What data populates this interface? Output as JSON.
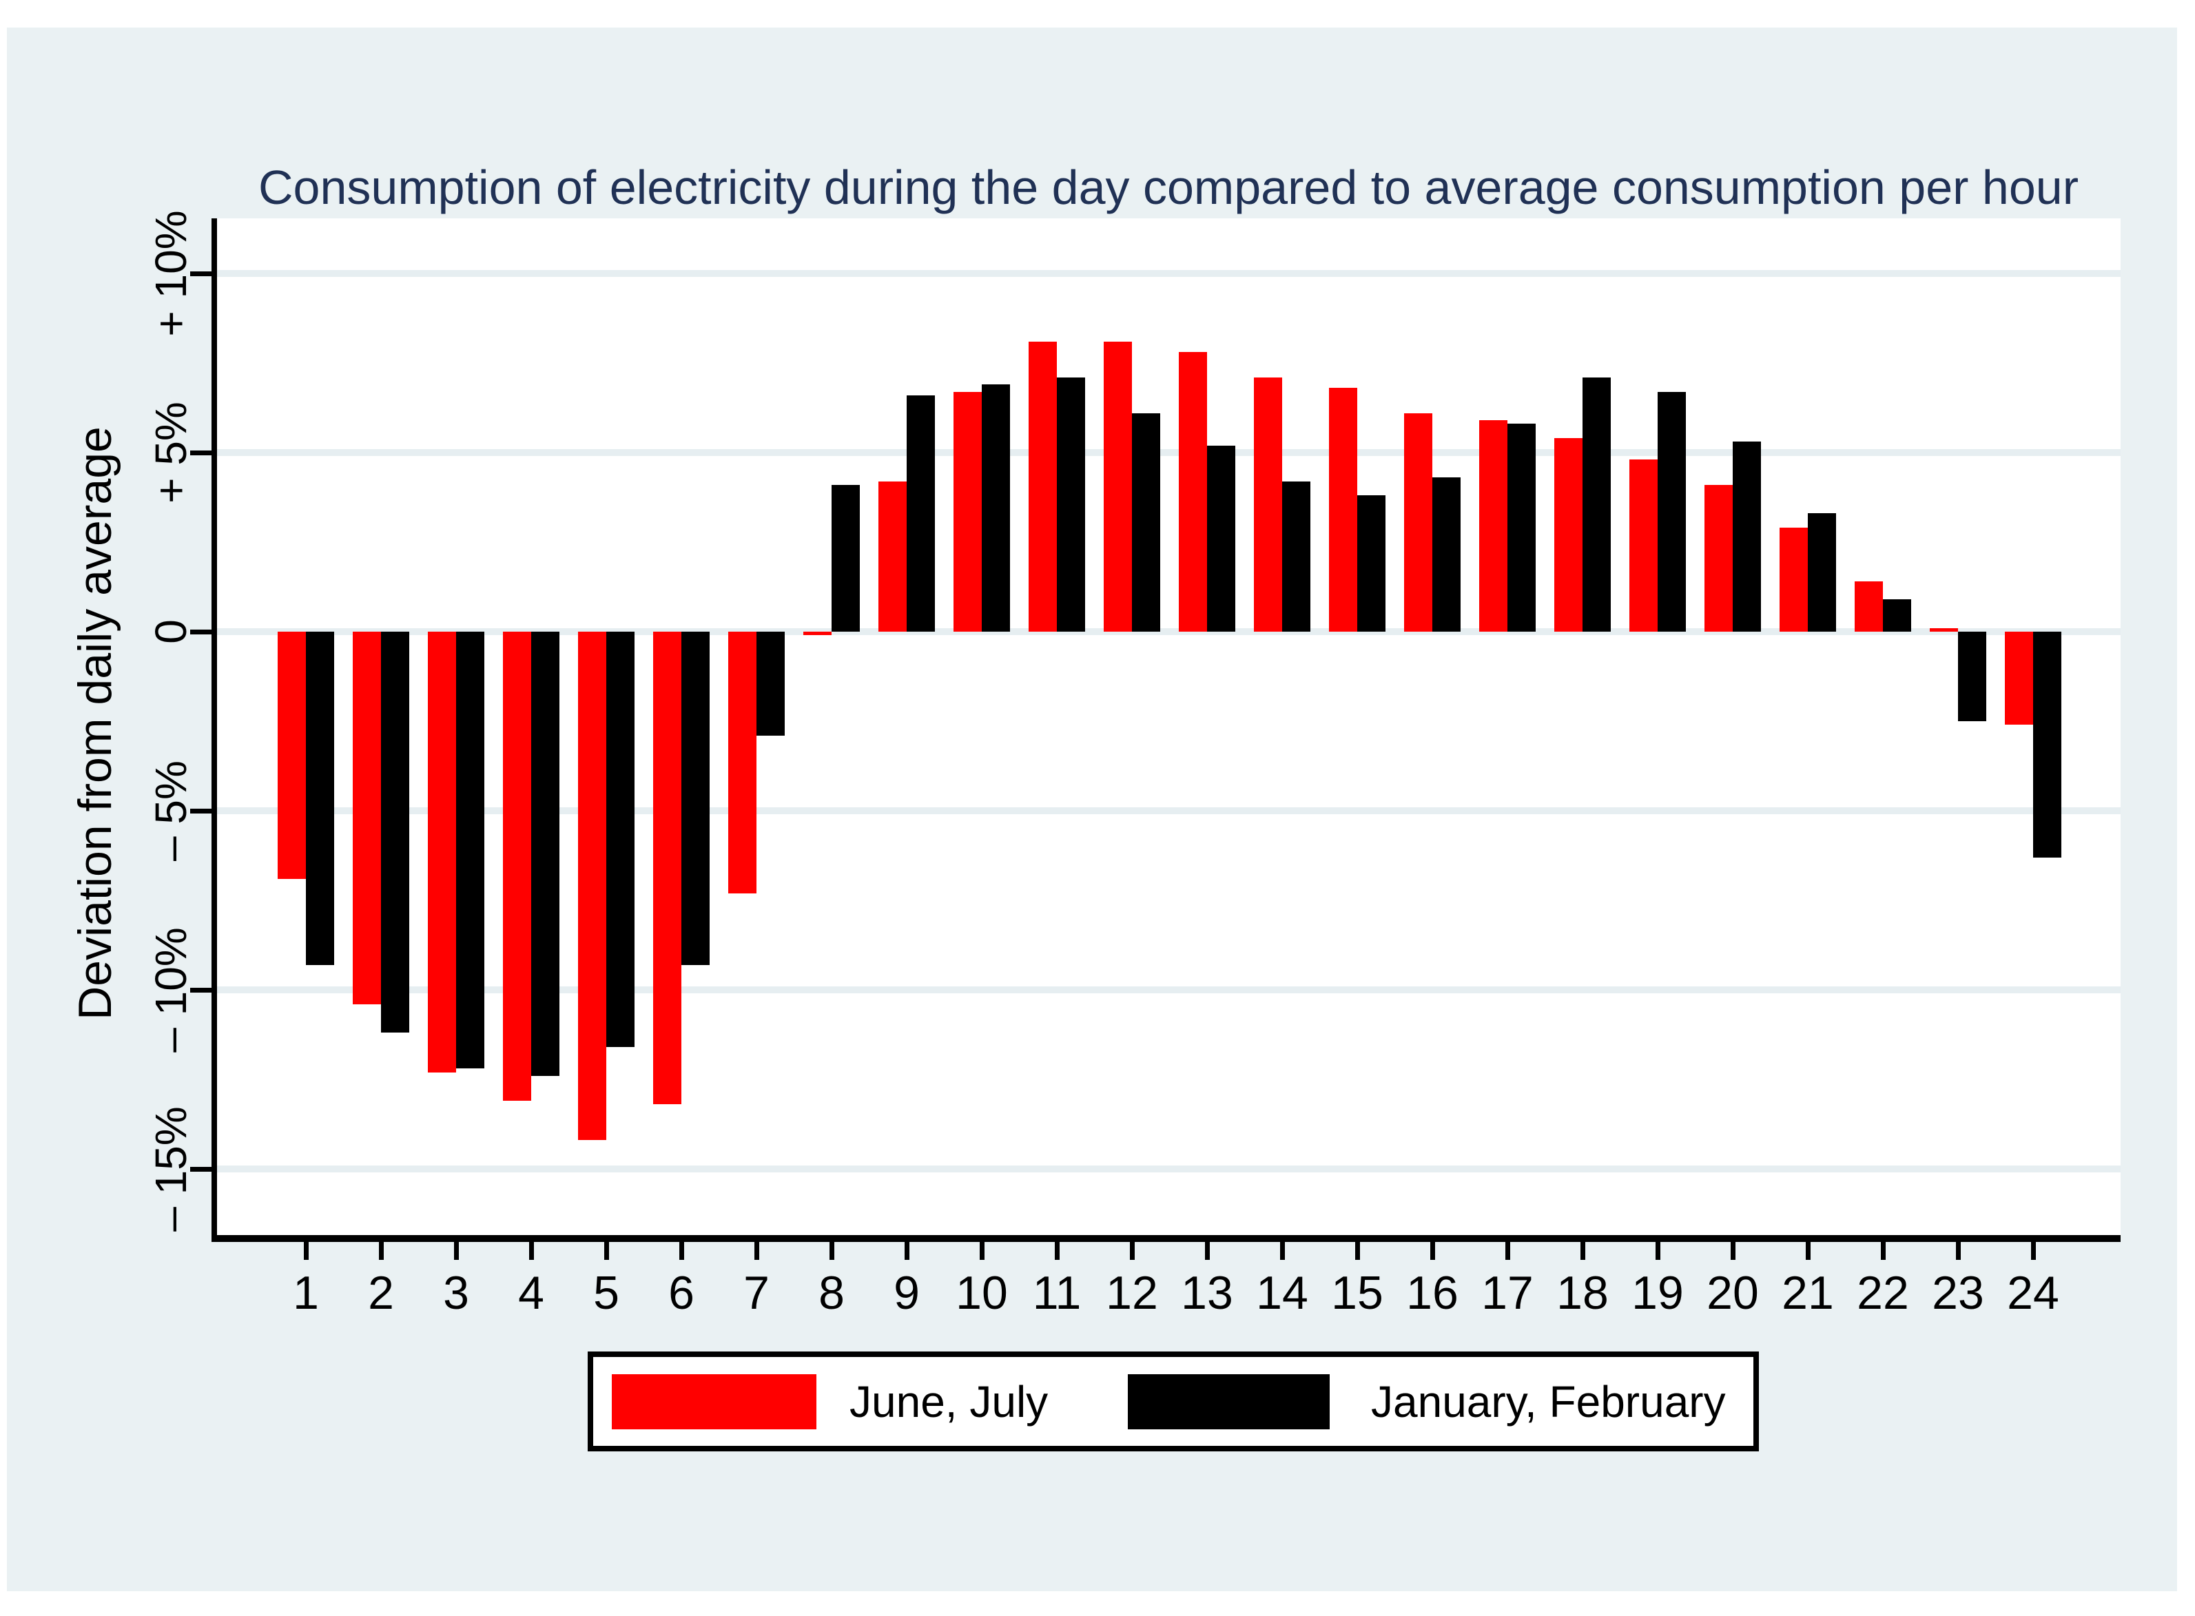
{
  "title": "Consumption of electricity during the day compared to average consumption per hour",
  "y_axis": {
    "title": "Deviation from daily average",
    "tick_labels": [
      "+ 10%",
      "+ 5%",
      "0",
      "– 5%",
      "– 10%",
      "– 15%"
    ],
    "tick_values": [
      10,
      5,
      0,
      -5,
      -10,
      -15
    ]
  },
  "x_axis": {
    "tick_labels": [
      "1",
      "2",
      "3",
      "4",
      "5",
      "6",
      "7",
      "8",
      "9",
      "10",
      "11",
      "12",
      "13",
      "14",
      "15",
      "16",
      "17",
      "18",
      "19",
      "20",
      "21",
      "22",
      "23",
      "24"
    ]
  },
  "legend": {
    "items": [
      {
        "label": "June, July",
        "color": "#ff0000"
      },
      {
        "label": "January, February",
        "color": "#000000"
      }
    ]
  },
  "colors": {
    "page_background": "#ffffff",
    "graph_background": "#eaf1f3",
    "plot_background": "#ffffff",
    "gridline": "#e6eef1",
    "axis": "#000000",
    "title_text": "#203155"
  },
  "chart_data": {
    "type": "bar",
    "title": "Consumption of electricity during the day compared to average consumption per hour",
    "xlabel": "",
    "ylabel": "Deviation from daily average",
    "categories": [
      "1",
      "2",
      "3",
      "4",
      "5",
      "6",
      "7",
      "8",
      "9",
      "10",
      "11",
      "12",
      "13",
      "14",
      "15",
      "16",
      "17",
      "18",
      "19",
      "20",
      "21",
      "22",
      "23",
      "24"
    ],
    "series": [
      {
        "name": "June, July",
        "color": "#ff0000",
        "values": [
          -6.9,
          -10.4,
          -12.3,
          -13.1,
          -14.2,
          -13.2,
          -7.3,
          -0.1,
          4.2,
          6.7,
          8.1,
          8.1,
          7.8,
          7.1,
          6.8,
          6.1,
          5.9,
          5.4,
          4.8,
          4.1,
          2.9,
          1.4,
          0.1,
          -2.6
        ]
      },
      {
        "name": "January, February",
        "color": "#000000",
        "values": [
          -9.3,
          -11.2,
          -12.2,
          -12.4,
          -11.6,
          -9.3,
          -2.9,
          4.1,
          6.6,
          6.9,
          7.1,
          6.1,
          5.2,
          4.2,
          3.8,
          4.3,
          5.8,
          7.1,
          6.7,
          5.3,
          3.3,
          0.9,
          -2.5,
          -6.3
        ]
      }
    ],
    "units": "percent",
    "ylim": [
      -16.9,
      11.5
    ],
    "yticks": [
      10,
      5,
      0,
      -5,
      -10,
      -15
    ],
    "grid": "horizontal",
    "legend_position": "bottom"
  }
}
